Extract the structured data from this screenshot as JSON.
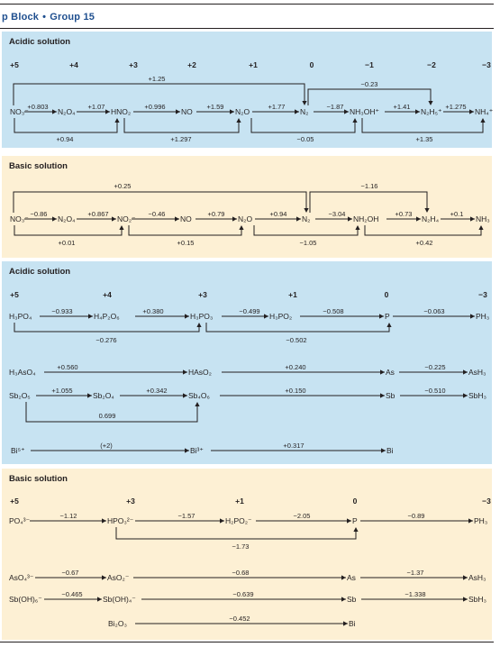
{
  "header": {
    "section": "p Block",
    "separator": "•",
    "group": "Group 15",
    "colors": {
      "title": "#1f4f8f",
      "rule": "#231f20"
    }
  },
  "panels": [
    {
      "id": "n-acidic",
      "title": "Acidic solution",
      "background": "#c7e3f2",
      "oxidation_states": [
        "+5",
        "+4",
        "+3",
        "+2",
        "+1",
        "0",
        "−1",
        "−2",
        "−3"
      ],
      "species": [
        "NO₃⁻",
        "N₂O₄",
        "HNO₂",
        "NO",
        "N₂O",
        "N₂",
        "NH₃OH⁺",
        "N₂H₅⁺",
        "NH₄⁺"
      ],
      "steps": [
        "+0.803",
        "+1.07",
        "+0.996",
        "+1.59",
        "+1.77",
        "−1.87",
        "+1.41",
        "+1.275"
      ],
      "overall": [
        "+1.25",
        "−0.23",
        "+0.94",
        "+1.297",
        "−0.05",
        "+1.35"
      ]
    },
    {
      "id": "n-basic",
      "title": "Basic solution",
      "background": "#fdf0d4",
      "species": [
        "NO₃⁻",
        "N₂O₄",
        "NO₂⁻",
        "NO",
        "N₂O",
        "N₂",
        "NH₂OH",
        "N₂H₄",
        "NH₃"
      ],
      "steps": [
        "−0.86",
        "+0.867",
        "−0.46",
        "+0.79",
        "+0.94",
        "−3.04",
        "+0.73",
        "+0.1"
      ],
      "overall": [
        "+0.25",
        "−1.16",
        "+0.01",
        "+0.15",
        "−1.05",
        "+0.42"
      ]
    },
    {
      "id": "p-acidic",
      "title": "Acidic solution",
      "background": "#c7e3f2",
      "oxidation_states": [
        "+5",
        "+4",
        "+3",
        "+1",
        "0",
        "−3"
      ],
      "p_chain": {
        "species": [
          "H₃PO₄",
          "H₄P₂O₆",
          "H₃PO₃",
          "H₃PO₂",
          "P",
          "PH₃"
        ],
        "steps": [
          "−0.933",
          "+0.380",
          "−0.499",
          "−0.508",
          "−0.063"
        ],
        "overall": [
          "−0.276",
          "−0.502"
        ]
      },
      "as_chain": {
        "species": [
          "H₃AsO₄",
          "HAsO₂",
          "As",
          "AsH₃"
        ],
        "steps": [
          "+0.560",
          "+0.240",
          "−0.225"
        ]
      },
      "sb_chain": {
        "species": [
          "Sb₂O₅",
          "Sb₂O₄",
          "Sb₄O₆",
          "Sb",
          "SbH₃"
        ],
        "steps": [
          "+1.055",
          "+0.342",
          "+0.150",
          "−0.510"
        ],
        "overall": [
          "0.699"
        ]
      },
      "bi_chain": {
        "species": [
          "Bi⁵⁺",
          "Bi³⁺",
          "Bi"
        ],
        "steps": [
          "(+2)",
          "+0.317"
        ]
      }
    },
    {
      "id": "p-basic",
      "title": "Basic solution",
      "background": "#fdf0d4",
      "oxidation_states": [
        "+5",
        "+3",
        "+1",
        "0",
        "−3"
      ],
      "p_chain": {
        "species": [
          "PO₄³⁻",
          "HPO₃²⁻",
          "H₂PO₂⁻",
          "P",
          "PH₃"
        ],
        "steps": [
          "−1.12",
          "−1.57",
          "−2.05",
          "−0.89"
        ],
        "overall": [
          "−1.73"
        ]
      },
      "as_chain": {
        "species": [
          "AsO₄³⁻",
          "AsO₂⁻",
          "As",
          "AsH₃"
        ],
        "steps": [
          "−0.67",
          "−0.68",
          "−1.37"
        ]
      },
      "sb_chain": {
        "species": [
          "Sb(OH)₆⁻",
          "Sb(OH)₄⁻",
          "Sb",
          "SbH₃"
        ],
        "steps": [
          "−0.465",
          "−0.639",
          "−1.338"
        ]
      },
      "bi_chain": {
        "species": [
          "Bi₂O₃",
          "Bi"
        ],
        "steps": [
          "−0.452"
        ]
      }
    }
  ]
}
